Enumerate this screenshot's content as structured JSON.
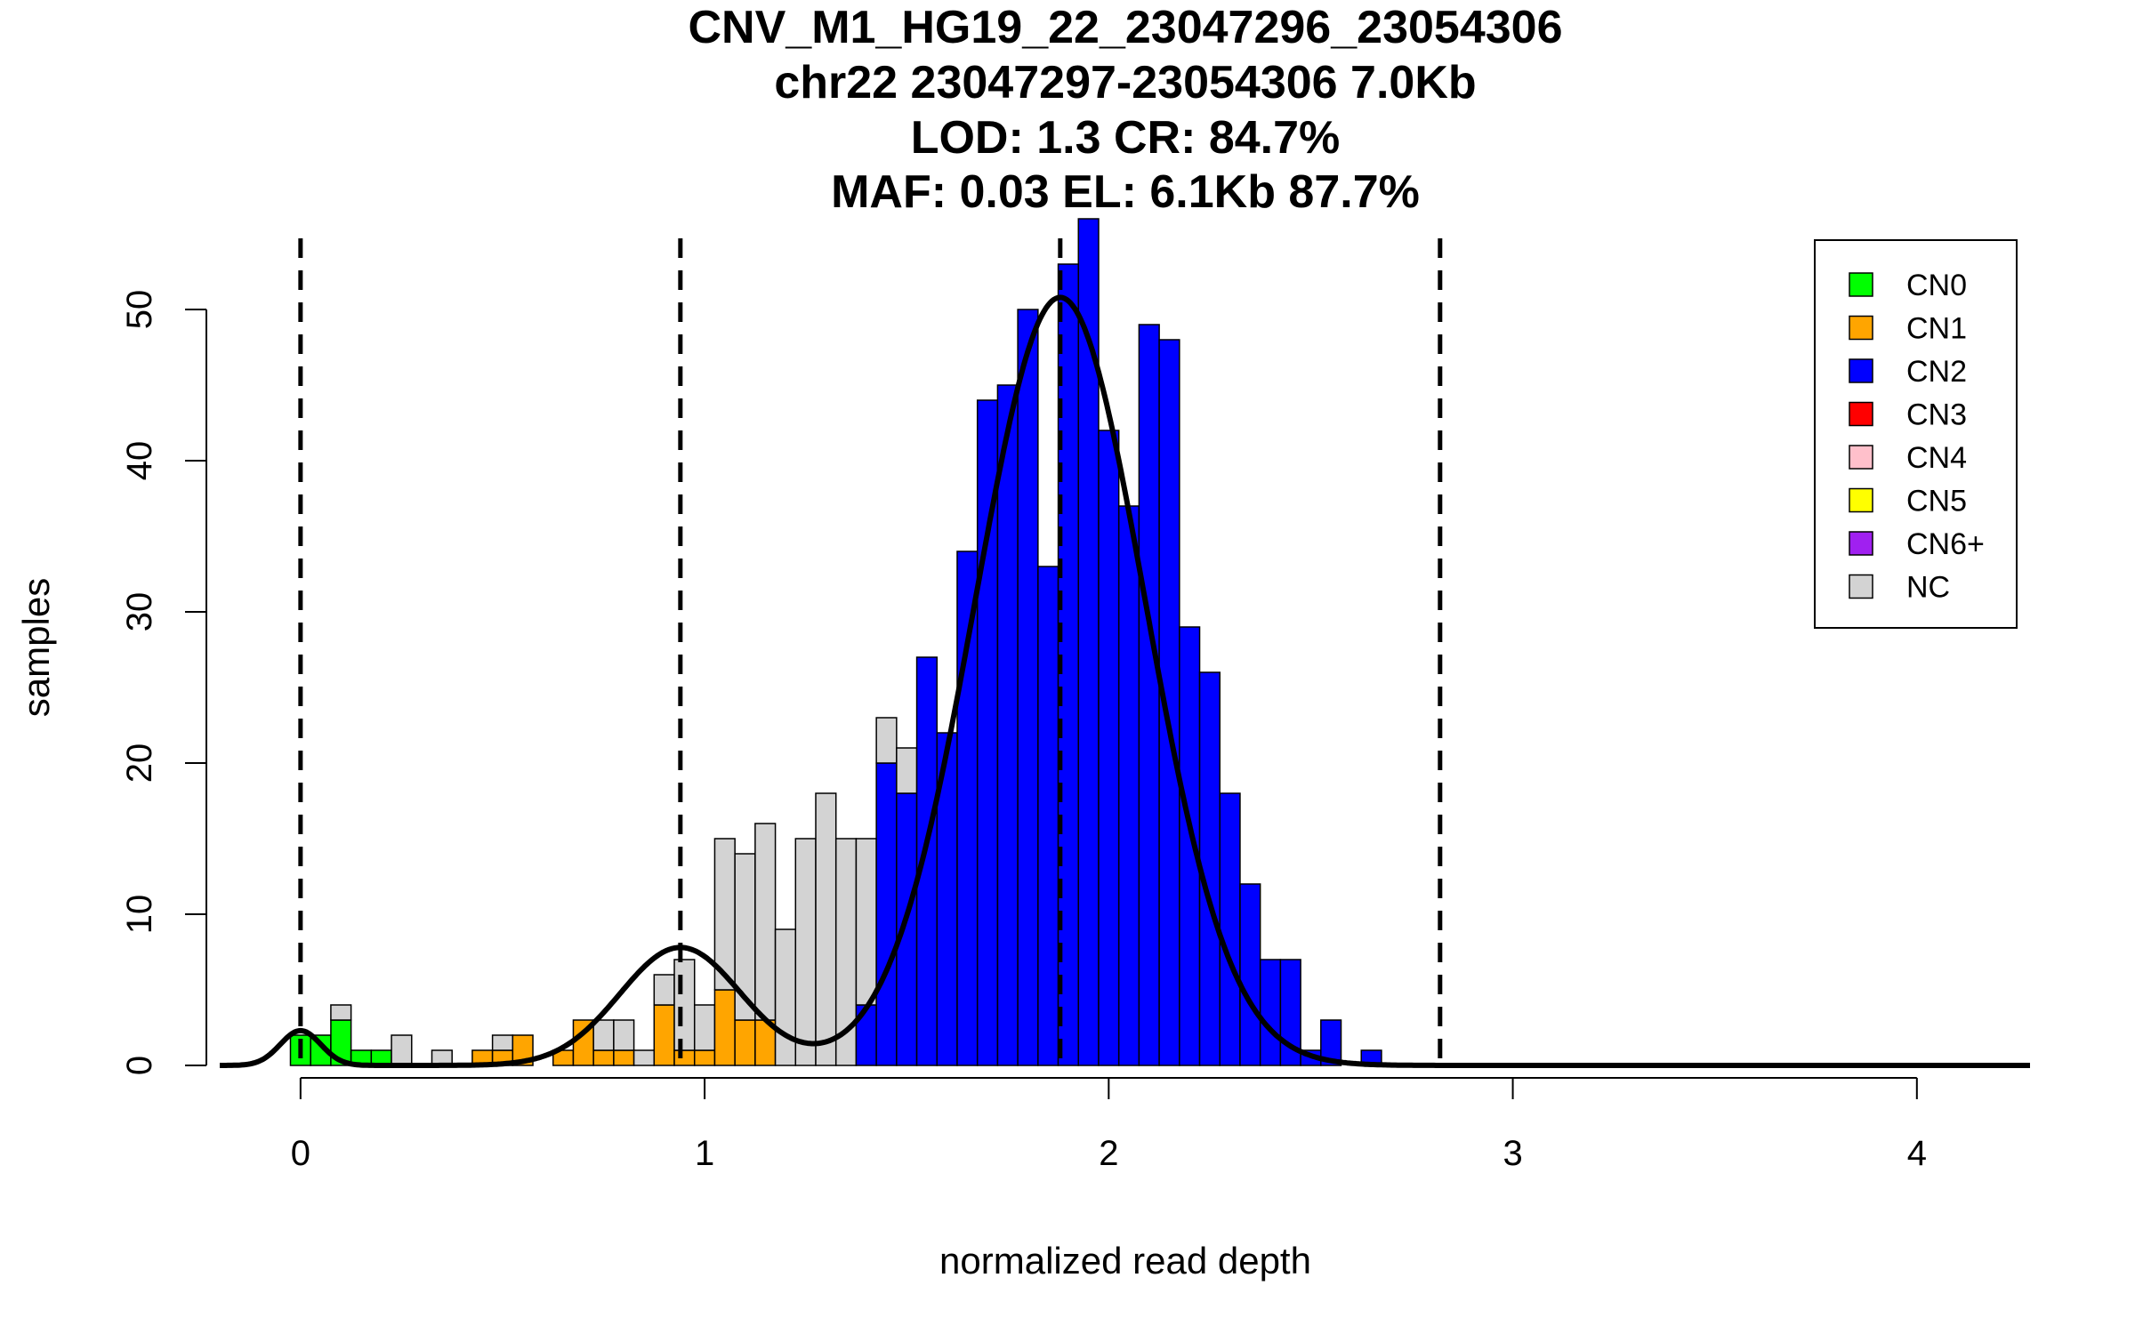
{
  "chart_data": {
    "type": "histogram",
    "title_lines": [
      "CNV_M1_HG19_22_23047296_23054306",
      "chr22 23047297-23054306 7.0Kb",
      "LOD: 1.3 CR: 84.7%",
      "MAF: 0.03 EL: 6.1Kb 87.7%"
    ],
    "xlabel": "normalized read depth",
    "ylabel": "samples",
    "xlim": [
      -0.2,
      4.28
    ],
    "ylim": [
      0,
      56
    ],
    "xticks": [
      0,
      1,
      2,
      3,
      4
    ],
    "yticks": [
      0,
      10,
      20,
      30,
      40,
      50
    ],
    "grid": false,
    "legend_position": "top-right",
    "bin_width": 0.05,
    "dashed_lines_x": [
      0,
      0.94,
      1.88,
      2.82
    ],
    "series": [
      {
        "name": "CN0",
        "color": "#00ff00"
      },
      {
        "name": "CN1",
        "color": "#ffa500"
      },
      {
        "name": "CN2",
        "color": "#0000ff"
      },
      {
        "name": "CN3",
        "color": "#ff0000"
      },
      {
        "name": "CN4",
        "color": "#ffc0cb"
      },
      {
        "name": "CN5",
        "color": "#ffff00"
      },
      {
        "name": "CN6+",
        "color": "#a020f0"
      },
      {
        "name": "NC",
        "color": "#d3d3d3"
      }
    ],
    "bins": [
      {
        "x0": -0.025,
        "counts": {
          "CN0": 2
        }
      },
      {
        "x0": 0.025,
        "counts": {
          "CN0": 2
        }
      },
      {
        "x0": 0.075,
        "counts": {
          "CN0": 3,
          "NC": 1
        }
      },
      {
        "x0": 0.125,
        "counts": {
          "CN0": 1
        }
      },
      {
        "x0": 0.175,
        "counts": {
          "CN0": 1
        }
      },
      {
        "x0": 0.225,
        "counts": {
          "NC": 2
        }
      },
      {
        "x0": 0.325,
        "counts": {
          "NC": 1
        }
      },
      {
        "x0": 0.425,
        "counts": {
          "CN1": 1
        }
      },
      {
        "x0": 0.475,
        "counts": {
          "CN1": 1,
          "NC": 1
        }
      },
      {
        "x0": 0.525,
        "counts": {
          "CN1": 2
        }
      },
      {
        "x0": 0.625,
        "counts": {
          "CN1": 1
        }
      },
      {
        "x0": 0.675,
        "counts": {
          "CN1": 3
        }
      },
      {
        "x0": 0.725,
        "counts": {
          "CN1": 1,
          "NC": 2
        }
      },
      {
        "x0": 0.775,
        "counts": {
          "CN1": 1,
          "NC": 2
        }
      },
      {
        "x0": 0.825,
        "counts": {
          "NC": 1
        }
      },
      {
        "x0": 0.875,
        "counts": {
          "CN1": 4,
          "NC": 2
        }
      },
      {
        "x0": 0.925,
        "counts": {
          "CN1": 1,
          "NC": 6
        }
      },
      {
        "x0": 0.975,
        "counts": {
          "CN1": 1,
          "NC": 3
        }
      },
      {
        "x0": 1.025,
        "counts": {
          "CN1": 5,
          "NC": 10
        }
      },
      {
        "x0": 1.075,
        "counts": {
          "CN1": 3,
          "NC": 11
        }
      },
      {
        "x0": 1.125,
        "counts": {
          "CN1": 3,
          "NC": 13
        }
      },
      {
        "x0": 1.175,
        "counts": {
          "NC": 9
        }
      },
      {
        "x0": 1.225,
        "counts": {
          "NC": 15
        }
      },
      {
        "x0": 1.275,
        "counts": {
          "NC": 18
        }
      },
      {
        "x0": 1.325,
        "counts": {
          "NC": 15
        }
      },
      {
        "x0": 1.375,
        "counts": {
          "CN2": 4,
          "NC": 11
        }
      },
      {
        "x0": 1.425,
        "counts": {
          "CN2": 20,
          "NC": 3
        }
      },
      {
        "x0": 1.475,
        "counts": {
          "CN2": 18,
          "NC": 3
        }
      },
      {
        "x0": 1.525,
        "counts": {
          "CN2": 27
        }
      },
      {
        "x0": 1.575,
        "counts": {
          "CN2": 22
        }
      },
      {
        "x0": 1.625,
        "counts": {
          "CN2": 34
        }
      },
      {
        "x0": 1.675,
        "counts": {
          "CN2": 44
        }
      },
      {
        "x0": 1.725,
        "counts": {
          "CN2": 45
        }
      },
      {
        "x0": 1.775,
        "counts": {
          "CN2": 50
        }
      },
      {
        "x0": 1.825,
        "counts": {
          "CN2": 33
        }
      },
      {
        "x0": 1.875,
        "counts": {
          "CN2": 53
        }
      },
      {
        "x0": 1.925,
        "counts": {
          "CN2": 56
        }
      },
      {
        "x0": 1.975,
        "counts": {
          "CN2": 42
        }
      },
      {
        "x0": 2.025,
        "counts": {
          "CN2": 37
        }
      },
      {
        "x0": 2.075,
        "counts": {
          "CN2": 49
        }
      },
      {
        "x0": 2.125,
        "counts": {
          "CN2": 48
        }
      },
      {
        "x0": 2.175,
        "counts": {
          "CN2": 29
        }
      },
      {
        "x0": 2.225,
        "counts": {
          "CN2": 26
        }
      },
      {
        "x0": 2.275,
        "counts": {
          "CN2": 18
        }
      },
      {
        "x0": 2.325,
        "counts": {
          "CN2": 12
        }
      },
      {
        "x0": 2.375,
        "counts": {
          "CN2": 7
        }
      },
      {
        "x0": 2.425,
        "counts": {
          "CN2": 7
        }
      },
      {
        "x0": 2.475,
        "counts": {
          "CN2": 1
        }
      },
      {
        "x0": 2.525,
        "counts": {
          "CN2": 3
        }
      },
      {
        "x0": 2.625,
        "counts": {
          "CN2": 1
        }
      }
    ],
    "fit_curves": [
      {
        "mean": 0,
        "sd": 0.05,
        "peak": 2.3
      },
      {
        "mean": 0.94,
        "sd": 0.15,
        "peak": 7.8
      },
      {
        "mean": 1.88,
        "sd": 0.21,
        "peak": 50.8
      }
    ]
  }
}
